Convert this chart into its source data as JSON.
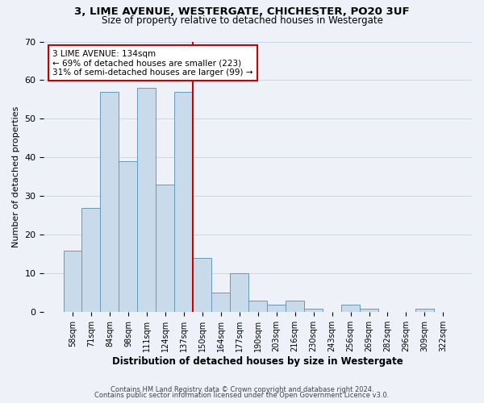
{
  "title_line1": "3, LIME AVENUE, WESTERGATE, CHICHESTER, PO20 3UF",
  "title_line2": "Size of property relative to detached houses in Westergate",
  "xlabel": "Distribution of detached houses by size in Westergate",
  "ylabel": "Number of detached properties",
  "categories": [
    "58sqm",
    "71sqm",
    "84sqm",
    "98sqm",
    "111sqm",
    "124sqm",
    "137sqm",
    "150sqm",
    "164sqm",
    "177sqm",
    "190sqm",
    "203sqm",
    "216sqm",
    "230sqm",
    "243sqm",
    "256sqm",
    "269sqm",
    "282sqm",
    "296sqm",
    "309sqm",
    "322sqm"
  ],
  "values": [
    16,
    27,
    57,
    39,
    58,
    33,
    57,
    14,
    5,
    10,
    3,
    2,
    3,
    1,
    0,
    2,
    1,
    0,
    0,
    1,
    0
  ],
  "bar_color": "#c9daea",
  "bar_edge_color": "#6699bb",
  "highlight_line_index": 6,
  "annotation_line1": "3 LIME AVENUE: 134sqm",
  "annotation_line2": "← 69% of detached houses are smaller (223)",
  "annotation_line3": "31% of semi-detached houses are larger (99) →",
  "annotation_box_color": "#ffffff",
  "annotation_box_edge_color": "#cc0000",
  "line_color": "#cc0000",
  "ylim": [
    0,
    70
  ],
  "yticks": [
    0,
    10,
    20,
    30,
    40,
    50,
    60,
    70
  ],
  "grid_color": "#ccd8e8",
  "background_color": "#eef2f8",
  "footnote_line1": "Contains HM Land Registry data © Crown copyright and database right 2024.",
  "footnote_line2": "Contains public sector information licensed under the Open Government Licence v3.0."
}
